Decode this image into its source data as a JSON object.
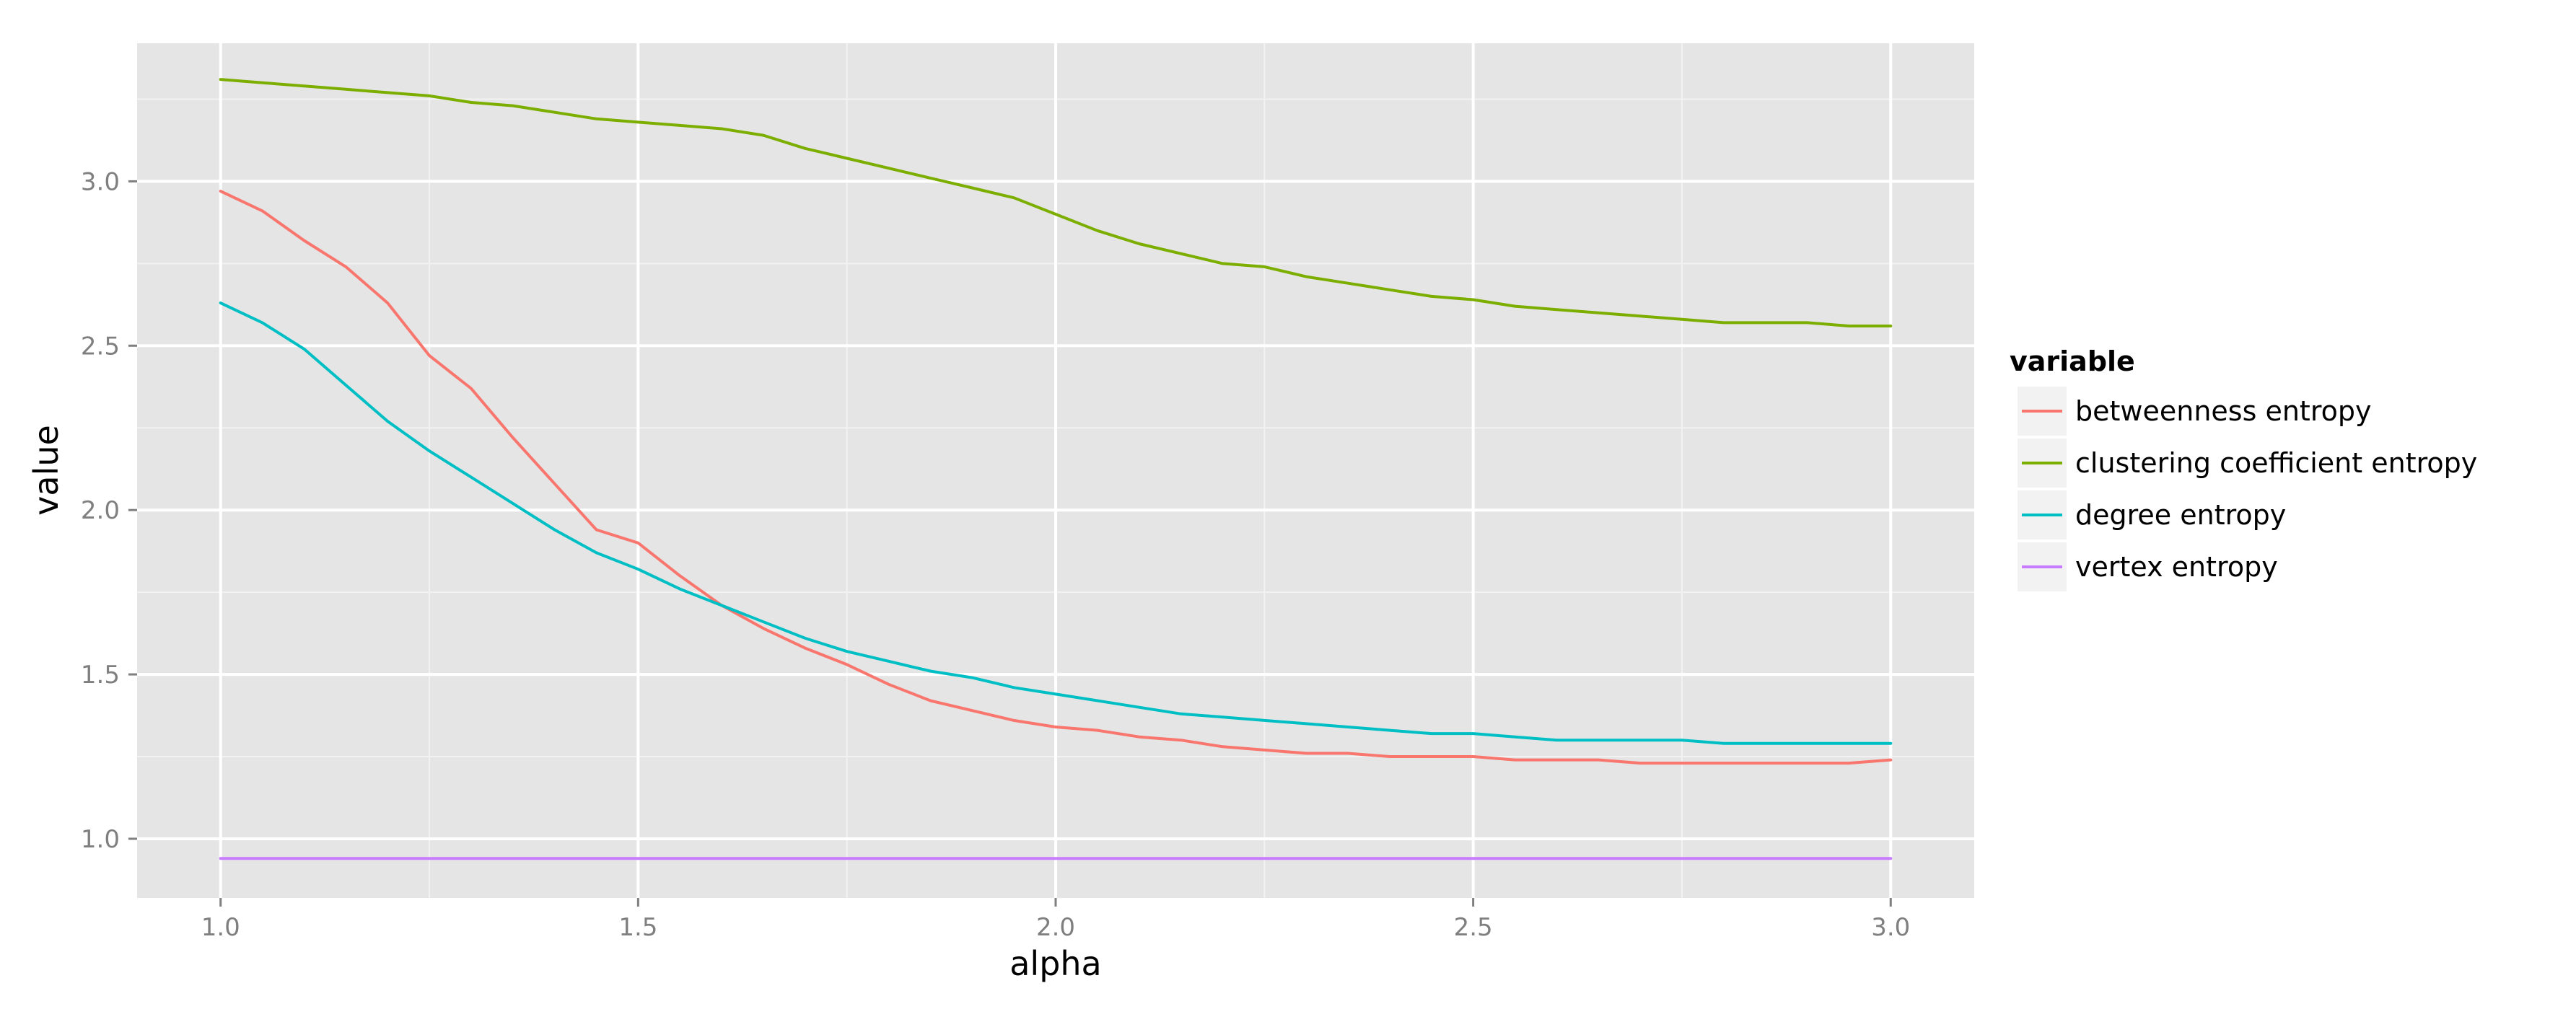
{
  "chart_data": {
    "type": "line",
    "title": "",
    "xlabel": "alpha",
    "ylabel": "value",
    "xlim": [
      0.9,
      3.1
    ],
    "ylim": [
      0.82,
      3.42
    ],
    "x_ticks": [
      1.0,
      1.5,
      2.0,
      2.5,
      3.0
    ],
    "x_tick_labels": [
      "1.0",
      "1.5",
      "2.0",
      "2.5",
      "3.0"
    ],
    "y_ticks": [
      1.0,
      1.5,
      2.0,
      2.5,
      3.0
    ],
    "y_tick_labels": [
      "1.0",
      "1.5",
      "2.0",
      "2.5",
      "3.0"
    ],
    "grid": true,
    "background": "#e5e5e5",
    "legend": {
      "title": "variable",
      "placement": "right"
    },
    "x": [
      1.0,
      1.05,
      1.1,
      1.15,
      1.2,
      1.25,
      1.3,
      1.35,
      1.4,
      1.45,
      1.5,
      1.55,
      1.6,
      1.65,
      1.7,
      1.75,
      1.8,
      1.85,
      1.9,
      1.95,
      2.0,
      2.05,
      2.1,
      2.15,
      2.2,
      2.25,
      2.3,
      2.35,
      2.4,
      2.45,
      2.5,
      2.55,
      2.6,
      2.65,
      2.7,
      2.75,
      2.8,
      2.85,
      2.9,
      2.95,
      3.0
    ],
    "series": [
      {
        "name": "betweenness entropy",
        "color": "#f8766d",
        "values": [
          2.97,
          2.91,
          2.82,
          2.74,
          2.63,
          2.47,
          2.37,
          2.22,
          2.08,
          1.94,
          1.9,
          1.8,
          1.71,
          1.64,
          1.58,
          1.53,
          1.47,
          1.42,
          1.39,
          1.36,
          1.34,
          1.33,
          1.31,
          1.3,
          1.28,
          1.27,
          1.26,
          1.26,
          1.25,
          1.25,
          1.25,
          1.24,
          1.24,
          1.24,
          1.23,
          1.23,
          1.23,
          1.23,
          1.23,
          1.23,
          1.24
        ]
      },
      {
        "name": "clustering coefficient entropy",
        "color": "#7cae00",
        "values": [
          3.31,
          3.3,
          3.29,
          3.28,
          3.27,
          3.26,
          3.24,
          3.23,
          3.21,
          3.19,
          3.18,
          3.17,
          3.16,
          3.14,
          3.1,
          3.07,
          3.04,
          3.01,
          2.98,
          2.95,
          2.9,
          2.85,
          2.81,
          2.78,
          2.75,
          2.74,
          2.71,
          2.69,
          2.67,
          2.65,
          2.64,
          2.62,
          2.61,
          2.6,
          2.59,
          2.58,
          2.57,
          2.57,
          2.57,
          2.56,
          2.56
        ]
      },
      {
        "name": "degree entropy",
        "color": "#00bfc4",
        "values": [
          2.63,
          2.57,
          2.49,
          2.38,
          2.27,
          2.18,
          2.1,
          2.02,
          1.94,
          1.87,
          1.82,
          1.76,
          1.71,
          1.66,
          1.61,
          1.57,
          1.54,
          1.51,
          1.49,
          1.46,
          1.44,
          1.42,
          1.4,
          1.38,
          1.37,
          1.36,
          1.35,
          1.34,
          1.33,
          1.32,
          1.32,
          1.31,
          1.3,
          1.3,
          1.3,
          1.3,
          1.29,
          1.29,
          1.29,
          1.29,
          1.29
        ]
      },
      {
        "name": "vertex entropy",
        "color": "#c77cff",
        "values": [
          0.94,
          0.94,
          0.94,
          0.94,
          0.94,
          0.94,
          0.94,
          0.94,
          0.94,
          0.94,
          0.94,
          0.94,
          0.94,
          0.94,
          0.94,
          0.94,
          0.94,
          0.94,
          0.94,
          0.94,
          0.94,
          0.94,
          0.94,
          0.94,
          0.94,
          0.94,
          0.94,
          0.94,
          0.94,
          0.94,
          0.94,
          0.94,
          0.94,
          0.94,
          0.94,
          0.94,
          0.94,
          0.94,
          0.94,
          0.94,
          0.94
        ]
      }
    ]
  }
}
